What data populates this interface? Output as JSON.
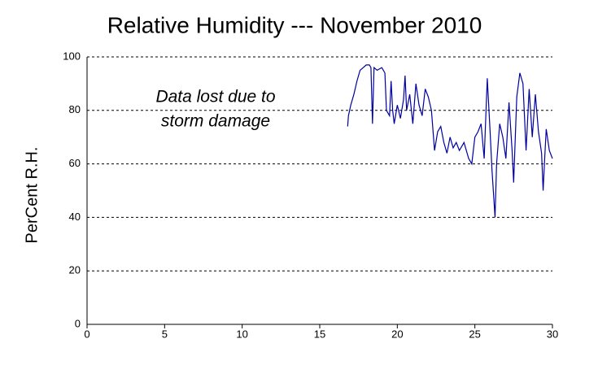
{
  "chart_data": {
    "type": "line",
    "title": "Relative Humidity --- November 2010",
    "y_label": "PerCent R.H.",
    "annotations": [
      "Data lost due to",
      "storm damage"
    ],
    "x": [
      16.8,
      16.85,
      17.0,
      17.2,
      17.4,
      17.6,
      17.8,
      18.0,
      18.2,
      18.3,
      18.4,
      18.5,
      18.7,
      19.0,
      19.2,
      19.3,
      19.5,
      19.6,
      19.7,
      19.8,
      20.0,
      20.2,
      20.4,
      20.5,
      20.6,
      20.8,
      21.0,
      21.2,
      21.4,
      21.6,
      21.8,
      22.0,
      22.2,
      22.4,
      22.6,
      22.8,
      23.0,
      23.2,
      23.4,
      23.6,
      23.8,
      24.0,
      24.3,
      24.6,
      24.8,
      25.0,
      25.2,
      25.4,
      25.6,
      25.8,
      26.0,
      26.1,
      26.3,
      26.4,
      26.6,
      26.8,
      27.0,
      27.2,
      27.4,
      27.5,
      27.7,
      27.9,
      28.1,
      28.3,
      28.5,
      28.7,
      28.9,
      29.1,
      29.3,
      29.4,
      29.5,
      29.6,
      29.8,
      30.0
    ],
    "series": [
      {
        "name": "Relative Humidity",
        "color": "#0000a0",
        "values": [
          74,
          78,
          82,
          86,
          91,
          95,
          96,
          97,
          97,
          96,
          75,
          96,
          95,
          96,
          94,
          80,
          78,
          91,
          80,
          75,
          82,
          77,
          84,
          93,
          80,
          86,
          75,
          90,
          82,
          78,
          88,
          85,
          80,
          65,
          72,
          74,
          68,
          64,
          70,
          66,
          68,
          65,
          68,
          62,
          60,
          70,
          72,
          75,
          62,
          92,
          70,
          58,
          40,
          60,
          75,
          70,
          62,
          83,
          65,
          53,
          85,
          94,
          90,
          65,
          88,
          70,
          86,
          72,
          64,
          50,
          62,
          73,
          65,
          62
        ]
      }
    ],
    "xlim": [
      0,
      30
    ],
    "xticks": [
      0,
      5,
      10,
      15,
      20,
      25,
      30
    ],
    "ylim": [
      0,
      100
    ],
    "yticks": [
      0,
      20,
      40,
      60,
      80,
      100
    ],
    "grid": true
  }
}
